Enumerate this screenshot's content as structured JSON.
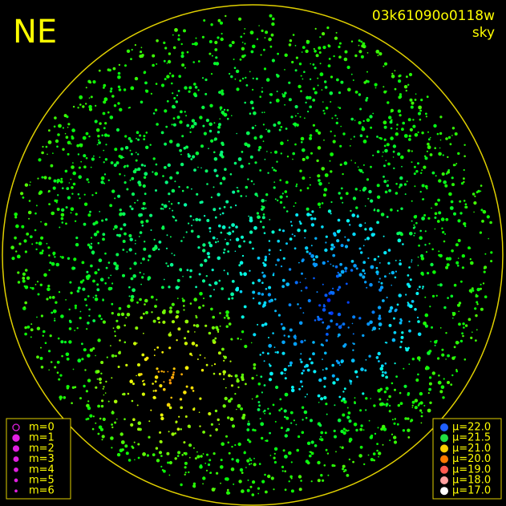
{
  "header": {
    "title": "NE",
    "image_id": "03k61090o0118w",
    "mode": "sky"
  },
  "magnitude_legend": [
    "m=0",
    "m=1",
    "m=2",
    "m=3",
    "m=4",
    "m=5",
    "m=6"
  ],
  "brightness_legend": [
    "μ=22.0",
    "μ=21.5",
    "μ=21.0",
    "μ=20.0",
    "μ=19.0",
    "μ=18.0",
    "μ=17.0"
  ]
}
